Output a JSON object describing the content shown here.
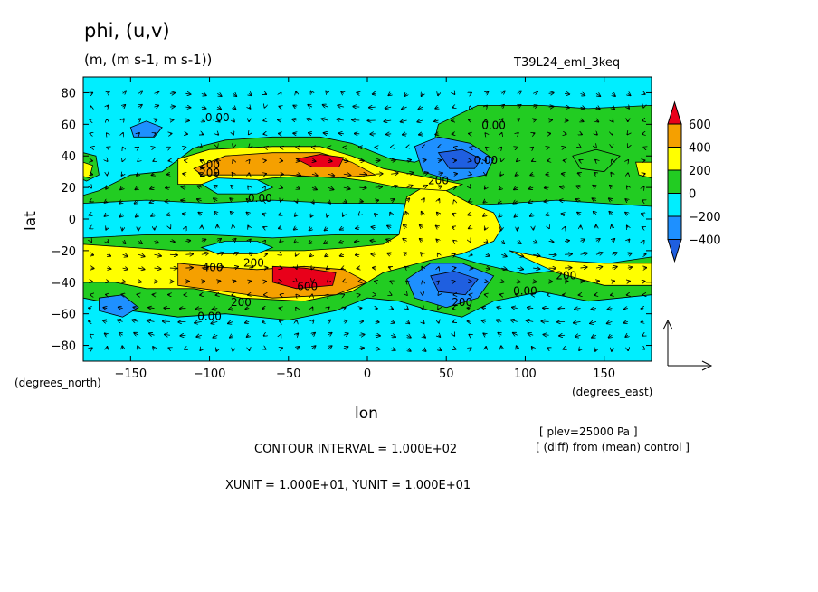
{
  "chart_data": {
    "type": "heatmap",
    "title": "phi, (u,v)",
    "units_line": "(m, (m s-1, m s-1))",
    "run_name": "T39L24_eml_3keq",
    "xlabel": "lon",
    "ylabel": "lat",
    "x_unit_label": "(degrees_east)",
    "y_unit_label": "(degrees_north)",
    "xlim": [
      -180,
      180
    ],
    "ylim": [
      -90,
      90
    ],
    "x_ticks": [
      -150,
      -100,
      -50,
      0,
      50,
      100,
      150
    ],
    "y_ticks": [
      80,
      60,
      40,
      20,
      0,
      -20,
      -40,
      -60,
      -80
    ],
    "x_tick_labels": [
      "−150",
      "−100",
      "−50",
      "0",
      "50",
      "100",
      "150"
    ],
    "y_tick_labels": [
      "80",
      "60",
      "40",
      "20",
      "0",
      "−20",
      "−40",
      "−60",
      "−80"
    ],
    "colorbar": {
      "levels": [
        600,
        400,
        200,
        0,
        -200,
        -400
      ],
      "labels": [
        "600",
        "400",
        "200",
        "0",
        "−200",
        "−400"
      ],
      "colors": [
        "#e8001a",
        "#f5a000",
        "#ffff00",
        "#22cc22",
        "#00eeff",
        "#1e90ff",
        "#1f5fe0"
      ]
    },
    "background_color": "#00eeff",
    "regions": [
      {
        "level": 0,
        "color": "#22cc22",
        "poly": [
          [
            -180,
            15
          ],
          [
            -170,
            18
          ],
          [
            -150,
            28
          ],
          [
            -130,
            30
          ],
          [
            -110,
            45
          ],
          [
            -90,
            50
          ],
          [
            -60,
            52
          ],
          [
            -30,
            52
          ],
          [
            -10,
            48
          ],
          [
            0,
            44
          ],
          [
            15,
            38
          ],
          [
            30,
            36
          ],
          [
            40,
            40
          ],
          [
            45,
            60
          ],
          [
            70,
            72
          ],
          [
            110,
            72
          ],
          [
            140,
            70
          ],
          [
            180,
            72
          ],
          [
            180,
            8
          ],
          [
            150,
            10
          ],
          [
            120,
            12
          ],
          [
            90,
            10
          ],
          [
            50,
            8
          ],
          [
            20,
            10
          ],
          [
            -20,
            10
          ],
          [
            -60,
            12
          ],
          [
            -100,
            10
          ],
          [
            -140,
            12
          ],
          [
            -180,
            10
          ]
        ]
      },
      {
        "level": 0,
        "color": "#22cc22",
        "poly": [
          [
            -180,
            -12
          ],
          [
            -140,
            -10
          ],
          [
            -100,
            -10
          ],
          [
            -60,
            -12
          ],
          [
            -20,
            -10
          ],
          [
            20,
            -10
          ],
          [
            40,
            -14
          ],
          [
            50,
            -22
          ],
          [
            70,
            -28
          ],
          [
            100,
            -35
          ],
          [
            140,
            -30
          ],
          [
            180,
            -24
          ],
          [
            180,
            -48
          ],
          [
            140,
            -52
          ],
          [
            110,
            -46
          ],
          [
            80,
            -52
          ],
          [
            60,
            -62
          ],
          [
            40,
            -58
          ],
          [
            20,
            -52
          ],
          [
            0,
            -50
          ],
          [
            -20,
            -58
          ],
          [
            -50,
            -64
          ],
          [
            -90,
            -60
          ],
          [
            -120,
            -62
          ],
          [
            -150,
            -58
          ],
          [
            -170,
            -52
          ],
          [
            -180,
            -50
          ]
        ]
      },
      {
        "level": 200,
        "color": "#ffff00",
        "poly": [
          [
            -180,
            -16
          ],
          [
            -150,
            -18
          ],
          [
            -120,
            -20
          ],
          [
            -80,
            -20
          ],
          [
            -40,
            -20
          ],
          [
            -10,
            -18
          ],
          [
            10,
            -16
          ],
          [
            20,
            -10
          ],
          [
            22,
            0
          ],
          [
            25,
            14
          ],
          [
            35,
            20
          ],
          [
            50,
            18
          ],
          [
            65,
            10
          ],
          [
            80,
            4
          ],
          [
            85,
            -6
          ],
          [
            80,
            -14
          ],
          [
            60,
            -22
          ],
          [
            40,
            -26
          ],
          [
            10,
            -34
          ],
          [
            -10,
            -46
          ],
          [
            -40,
            -52
          ],
          [
            -80,
            -50
          ],
          [
            -110,
            -44
          ],
          [
            -140,
            -44
          ],
          [
            -160,
            -40
          ],
          [
            -180,
            -40
          ]
        ]
      },
      {
        "level": 200,
        "color": "#ffff00",
        "poly": [
          [
            -120,
            22
          ],
          [
            -120,
            38
          ],
          [
            -100,
            44
          ],
          [
            -60,
            46
          ],
          [
            -30,
            46
          ],
          [
            -10,
            40
          ],
          [
            10,
            32
          ],
          [
            40,
            26
          ],
          [
            60,
            22
          ],
          [
            50,
            18
          ],
          [
            20,
            20
          ],
          [
            0,
            24
          ],
          [
            -30,
            28
          ],
          [
            -60,
            26
          ],
          [
            -90,
            22
          ]
        ]
      },
      {
        "level": 200,
        "color": "#ffff00",
        "poly": [
          [
            90,
            -20
          ],
          [
            120,
            -26
          ],
          [
            150,
            -28
          ],
          [
            180,
            -28
          ],
          [
            180,
            -42
          ],
          [
            150,
            -42
          ],
          [
            120,
            -34
          ]
        ]
      },
      {
        "level": 400,
        "color": "#f5a000",
        "poly": [
          [
            -110,
            32
          ],
          [
            -90,
            40
          ],
          [
            -60,
            42
          ],
          [
            -30,
            42
          ],
          [
            -10,
            36
          ],
          [
            5,
            28
          ],
          [
            -20,
            26
          ],
          [
            -50,
            28
          ],
          [
            -80,
            28
          ],
          [
            -105,
            28
          ]
        ]
      },
      {
        "level": 400,
        "color": "#f5a000",
        "poly": [
          [
            -120,
            -28
          ],
          [
            -100,
            -30
          ],
          [
            -70,
            -32
          ],
          [
            -40,
            -30
          ],
          [
            -15,
            -32
          ],
          [
            0,
            -40
          ],
          [
            -20,
            -48
          ],
          [
            -60,
            -50
          ],
          [
            -90,
            -46
          ],
          [
            -120,
            -42
          ]
        ]
      },
      {
        "level": 600,
        "color": "#e8001a",
        "poly": [
          [
            -45,
            38
          ],
          [
            -30,
            41
          ],
          [
            -15,
            39
          ],
          [
            -18,
            33
          ],
          [
            -35,
            33
          ]
        ]
      },
      {
        "level": 600,
        "color": "#e8001a",
        "poly": [
          [
            -60,
            -30
          ],
          [
            -40,
            -31
          ],
          [
            -20,
            -34
          ],
          [
            -22,
            -42
          ],
          [
            -45,
            -44
          ],
          [
            -60,
            -40
          ]
        ]
      },
      {
        "level": -200,
        "color": "#00eeff",
        "poly": [
          [
            -105,
            22
          ],
          [
            -95,
            26
          ],
          [
            -70,
            25
          ],
          [
            -60,
            20
          ],
          [
            -70,
            16
          ],
          [
            -95,
            16
          ]
        ]
      },
      {
        "level": -200,
        "color": "#00eeff",
        "poly": [
          [
            -105,
            -18
          ],
          [
            -90,
            -14
          ],
          [
            -70,
            -14
          ],
          [
            -60,
            -18
          ],
          [
            -70,
            -22
          ],
          [
            -95,
            -22
          ]
        ]
      },
      {
        "level": -200,
        "color": "#1e90ff",
        "poly": [
          [
            -150,
            58
          ],
          [
            -140,
            62
          ],
          [
            -130,
            58
          ],
          [
            -135,
            52
          ],
          [
            -148,
            52
          ]
        ]
      },
      {
        "level": -200,
        "color": "#1e90ff",
        "poly": [
          [
            -170,
            -50
          ],
          [
            -155,
            -48
          ],
          [
            -145,
            -56
          ],
          [
            -155,
            -62
          ],
          [
            -170,
            -58
          ]
        ]
      },
      {
        "level": -200,
        "color": "#1e90ff",
        "poly": [
          [
            30,
            46
          ],
          [
            45,
            52
          ],
          [
            65,
            48
          ],
          [
            80,
            38
          ],
          [
            75,
            28
          ],
          [
            55,
            24
          ],
          [
            35,
            30
          ]
        ]
      },
      {
        "level": -200,
        "color": "#1e90ff",
        "poly": [
          [
            25,
            -38
          ],
          [
            40,
            -28
          ],
          [
            60,
            -28
          ],
          [
            80,
            -36
          ],
          [
            70,
            -50
          ],
          [
            50,
            -56
          ],
          [
            30,
            -50
          ]
        ]
      },
      {
        "level": -400,
        "color": "#1f5fe0",
        "poly": [
          [
            45,
            42
          ],
          [
            60,
            44
          ],
          [
            72,
            38
          ],
          [
            68,
            32
          ],
          [
            52,
            32
          ]
        ]
      },
      {
        "level": -400,
        "color": "#1f5fe0",
        "poly": [
          [
            40,
            -36
          ],
          [
            55,
            -33
          ],
          [
            70,
            -38
          ],
          [
            62,
            -48
          ],
          [
            45,
            -46
          ]
        ]
      },
      {
        "level": 0,
        "color": "#22cc22",
        "poly": [
          [
            130,
            40
          ],
          [
            145,
            44
          ],
          [
            160,
            40
          ],
          [
            150,
            30
          ],
          [
            135,
            32
          ]
        ]
      },
      {
        "level": 0,
        "color": "#22cc22",
        "poly": [
          [
            -180,
            42
          ],
          [
            -172,
            40
          ],
          [
            -170,
            28
          ],
          [
            -178,
            24
          ],
          [
            -180,
            25
          ]
        ]
      },
      {
        "level": 200,
        "color": "#ffff00",
        "poly": [
          [
            -180,
            36
          ],
          [
            -174,
            34
          ],
          [
            -176,
            26
          ],
          [
            -180,
            27
          ]
        ]
      },
      {
        "level": 200,
        "color": "#ffff00",
        "poly": [
          [
            170,
            36
          ],
          [
            180,
            36
          ],
          [
            180,
            26
          ],
          [
            172,
            28
          ]
        ]
      }
    ],
    "contour_labels": [
      {
        "text": "0.00",
        "lon": -95,
        "lat": 62
      },
      {
        "text": "0.00",
        "lon": 80,
        "lat": 57
      },
      {
        "text": "0.00",
        "lon": 75,
        "lat": 35
      },
      {
        "text": "200",
        "lon": -100,
        "lat": 32
      },
      {
        "text": "200",
        "lon": -100,
        "lat": 27
      },
      {
        "text": "200",
        "lon": 45,
        "lat": 22
      },
      {
        "text": "0.00",
        "lon": -68,
        "lat": 11
      },
      {
        "text": "400",
        "lon": -98,
        "lat": -33
      },
      {
        "text": "200",
        "lon": -72,
        "lat": -30
      },
      {
        "text": "600",
        "lon": -38,
        "lat": -45
      },
      {
        "text": "200",
        "lon": -80,
        "lat": -55
      },
      {
        "text": "0.00",
        "lon": -100,
        "lat": -64
      },
      {
        "text": "200",
        "lon": 60,
        "lat": -55
      },
      {
        "text": "0.00",
        "lon": 100,
        "lat": -48
      },
      {
        "text": "200",
        "lon": 126,
        "lat": -38
      }
    ],
    "vector_ref_label_x": "XUNIT = 1.000E+01",
    "vector_ref_label_y": "YUNIT = 1.000E+01"
  },
  "footer": {
    "plev": "[ plev=25000 Pa ]",
    "diff_note": "[ (diff) from (mean) control ]",
    "contour_interval": "CONTOUR INTERVAL = 1.000E+02",
    "vector_units": "XUNIT = 1.000E+01, YUNIT = 1.000E+01"
  }
}
